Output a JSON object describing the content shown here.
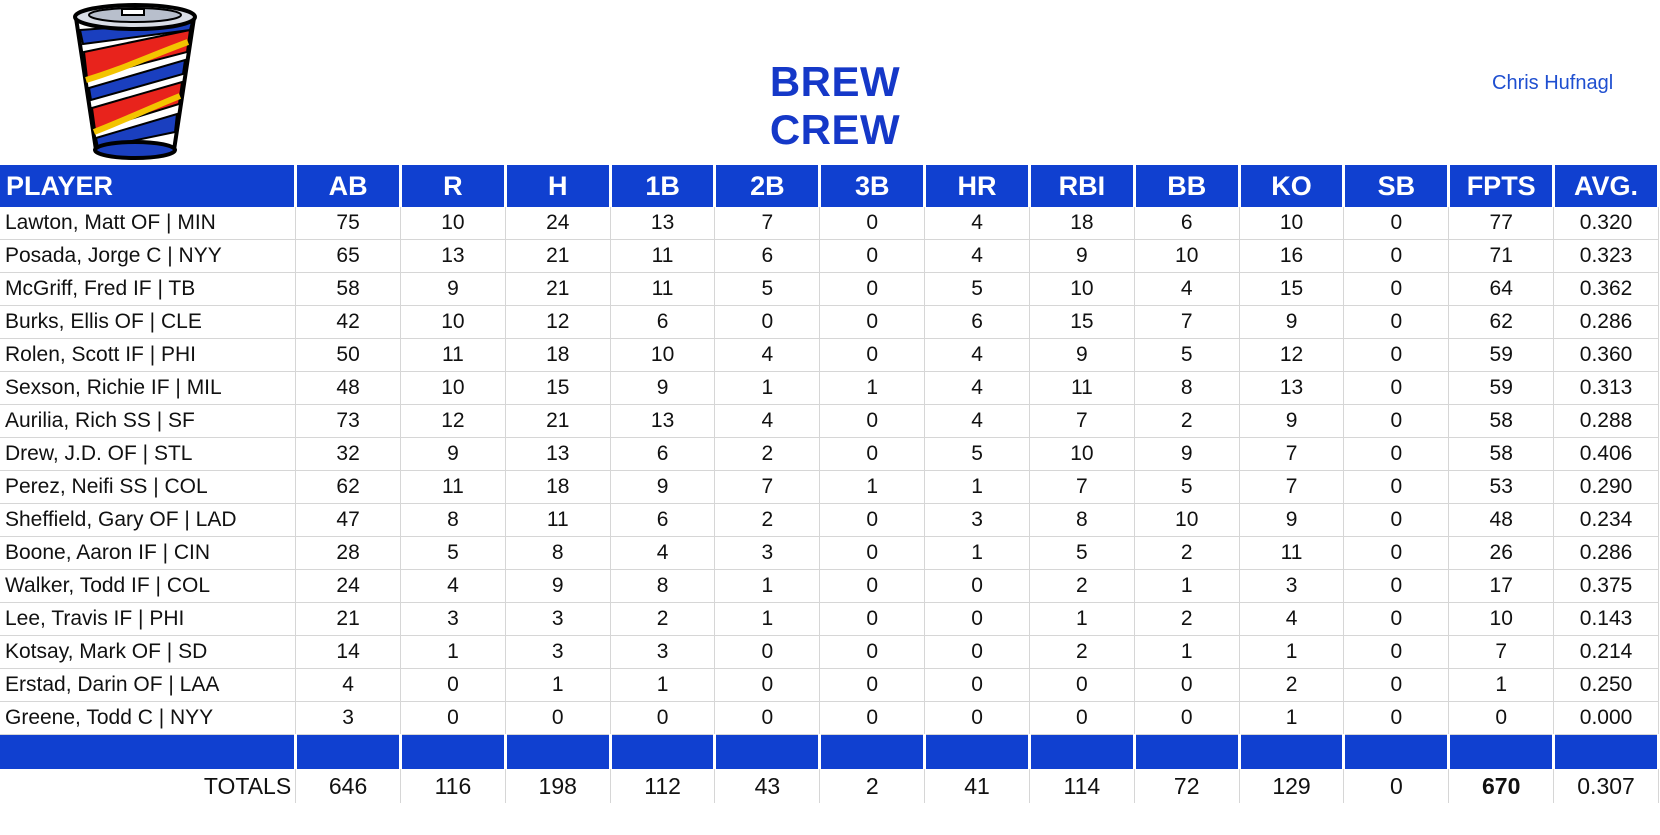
{
  "header": {
    "team_name": "BREW CREW",
    "owner": "Chris Hufnagl",
    "logo_icon": "paper-cup-icon"
  },
  "colors": {
    "header_bg": "#1040d0",
    "title_text": "#1538c8",
    "owner_text": "#1f4fd0"
  },
  "table": {
    "columns": [
      "PLAYER",
      "AB",
      "R",
      "H",
      "1B",
      "2B",
      "3B",
      "HR",
      "RBI",
      "BB",
      "KO",
      "SB",
      "FPTS",
      "AVG."
    ],
    "rows": [
      [
        "Lawton, Matt OF | MIN",
        "75",
        "10",
        "24",
        "13",
        "7",
        "0",
        "4",
        "18",
        "6",
        "10",
        "0",
        "77",
        "0.320"
      ],
      [
        "Posada, Jorge C | NYY",
        "65",
        "13",
        "21",
        "11",
        "6",
        "0",
        "4",
        "9",
        "10",
        "16",
        "0",
        "71",
        "0.323"
      ],
      [
        "McGriff, Fred IF | TB",
        "58",
        "9",
        "21",
        "11",
        "5",
        "0",
        "5",
        "10",
        "4",
        "15",
        "0",
        "64",
        "0.362"
      ],
      [
        "Burks, Ellis OF | CLE",
        "42",
        "10",
        "12",
        "6",
        "0",
        "0",
        "6",
        "15",
        "7",
        "9",
        "0",
        "62",
        "0.286"
      ],
      [
        "Rolen, Scott IF | PHI",
        "50",
        "11",
        "18",
        "10",
        "4",
        "0",
        "4",
        "9",
        "5",
        "12",
        "0",
        "59",
        "0.360"
      ],
      [
        "Sexson, Richie IF | MIL",
        "48",
        "10",
        "15",
        "9",
        "1",
        "1",
        "4",
        "11",
        "8",
        "13",
        "0",
        "59",
        "0.313"
      ],
      [
        "Aurilia, Rich SS | SF",
        "73",
        "12",
        "21",
        "13",
        "4",
        "0",
        "4",
        "7",
        "2",
        "9",
        "0",
        "58",
        "0.288"
      ],
      [
        "Drew, J.D. OF | STL",
        "32",
        "9",
        "13",
        "6",
        "2",
        "0",
        "5",
        "10",
        "9",
        "7",
        "0",
        "58",
        "0.406"
      ],
      [
        "Perez, Neifi SS | COL",
        "62",
        "11",
        "18",
        "9",
        "7",
        "1",
        "1",
        "7",
        "5",
        "7",
        "0",
        "53",
        "0.290"
      ],
      [
        "Sheffield, Gary OF | LAD",
        "47",
        "8",
        "11",
        "6",
        "2",
        "0",
        "3",
        "8",
        "10",
        "9",
        "0",
        "48",
        "0.234"
      ],
      [
        "Boone, Aaron IF | CIN",
        "28",
        "5",
        "8",
        "4",
        "3",
        "0",
        "1",
        "5",
        "2",
        "11",
        "0",
        "26",
        "0.286"
      ],
      [
        "Walker, Todd IF | COL",
        "24",
        "4",
        "9",
        "8",
        "1",
        "0",
        "0",
        "2",
        "1",
        "3",
        "0",
        "17",
        "0.375"
      ],
      [
        "Lee, Travis IF | PHI",
        "21",
        "3",
        "3",
        "2",
        "1",
        "0",
        "0",
        "1",
        "2",
        "4",
        "0",
        "10",
        "0.143"
      ],
      [
        "Kotsay, Mark OF | SD",
        "14",
        "1",
        "3",
        "3",
        "0",
        "0",
        "0",
        "2",
        "1",
        "1",
        "0",
        "7",
        "0.214"
      ],
      [
        "Erstad, Darin OF | LAA",
        "4",
        "0",
        "1",
        "1",
        "0",
        "0",
        "0",
        "0",
        "0",
        "2",
        "0",
        "1",
        "0.250"
      ],
      [
        "Greene, Todd C | NYY",
        "3",
        "0",
        "0",
        "0",
        "0",
        "0",
        "0",
        "0",
        "0",
        "1",
        "0",
        "0",
        "0.000"
      ]
    ],
    "totals": [
      "TOTALS",
      "646",
      "116",
      "198",
      "112",
      "43",
      "2",
      "41",
      "114",
      "72",
      "129",
      "0",
      "670",
      "0.307"
    ]
  }
}
